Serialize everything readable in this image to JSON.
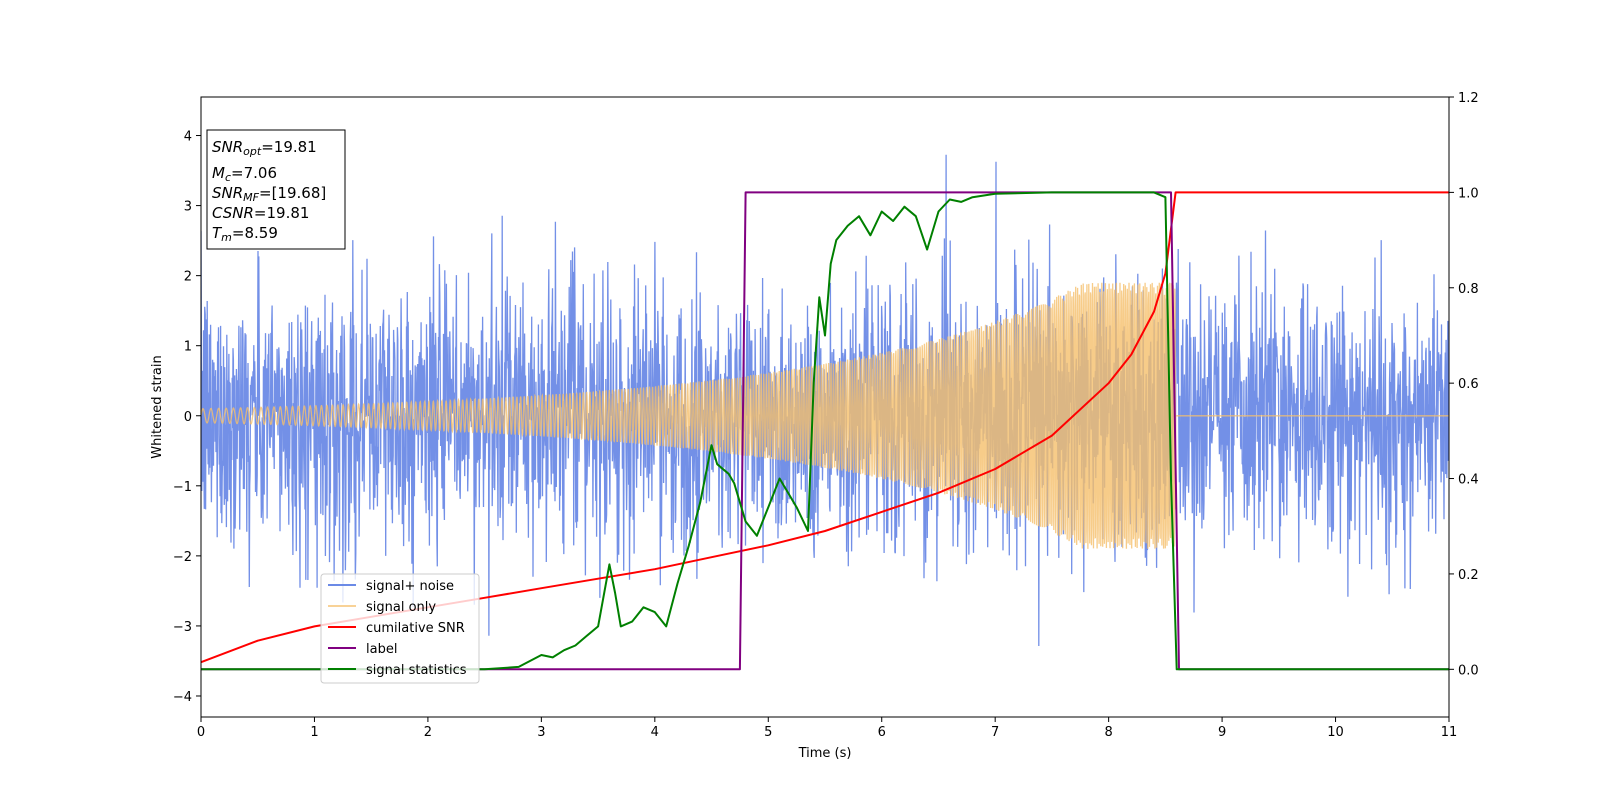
{
  "chart_data": {
    "type": "line",
    "xlabel": "Time (s)",
    "ylabel": "Whitened strain",
    "xlim": [
      0,
      11
    ],
    "ylim": [
      -4.3,
      4.55
    ],
    "y2lim": [
      -0.1,
      1.2
    ],
    "x_ticks": [
      0,
      1,
      2,
      3,
      4,
      5,
      6,
      7,
      8,
      9,
      10,
      11
    ],
    "y_ticks": [
      -4,
      -3,
      -2,
      -1,
      0,
      1,
      2,
      3,
      4
    ],
    "y2_ticks": [
      "0.0",
      "0.2",
      "0.4",
      "0.6",
      "0.8",
      "1.0",
      "1.2"
    ],
    "grid": false,
    "legend_placement": "lower-left",
    "annotation": {
      "lines": [
        {
          "main": "SNR",
          "sub": "opt",
          "rest": "=19.81"
        },
        {
          "main": "M",
          "sub": "c",
          "rest": "=7.06"
        },
        {
          "main": "SNR",
          "sub": "MF",
          "rest": "=[19.68]"
        },
        {
          "main": "CSNR",
          "sub": "",
          "rest": "=19.81"
        },
        {
          "main": "T",
          "sub": "m",
          "rest": "=8.59"
        }
      ]
    },
    "series": [
      {
        "name": "signal+ noise",
        "color": "#6b8ae6",
        "axis": "left",
        "kind": "noise",
        "noise_sigma": 1.0,
        "samples": 3000
      },
      {
        "name": "signal only",
        "color": "#f5bf6b",
        "axis": "left",
        "kind": "chirp",
        "amplitude_at_start": 0.1,
        "amplitude_at_merger": 1.9,
        "merger_time": 8.59
      },
      {
        "name": "cumilative SNR",
        "color": "#ff0000",
        "axis": "right",
        "x": [
          0,
          0.5,
          1,
          1.5,
          2,
          2.5,
          3,
          3.5,
          4,
          4.5,
          5,
          5.5,
          6,
          6.5,
          7,
          7.5,
          8,
          8.2,
          8.4,
          8.5,
          8.59,
          11
        ],
        "y": [
          0.015,
          0.06,
          0.09,
          0.11,
          0.13,
          0.15,
          0.17,
          0.19,
          0.21,
          0.235,
          0.26,
          0.29,
          0.33,
          0.37,
          0.42,
          0.49,
          0.6,
          0.66,
          0.75,
          0.83,
          1.0,
          1.0
        ]
      },
      {
        "name": "label",
        "color": "#800080",
        "axis": "right",
        "x": [
          0,
          4.75,
          4.8,
          8.55,
          8.62,
          11
        ],
        "y": [
          0.0,
          0.0,
          1.0,
          1.0,
          0.0,
          0.0
        ]
      },
      {
        "name": "signal statistics",
        "color": "#008000",
        "axis": "right",
        "x": [
          0,
          2.5,
          2.8,
          3.0,
          3.1,
          3.2,
          3.3,
          3.4,
          3.5,
          3.6,
          3.65,
          3.7,
          3.8,
          3.9,
          4.0,
          4.1,
          4.2,
          4.3,
          4.4,
          4.5,
          4.55,
          4.65,
          4.7,
          4.8,
          4.9,
          5.0,
          5.1,
          5.15,
          5.25,
          5.35,
          5.4,
          5.45,
          5.5,
          5.55,
          5.6,
          5.7,
          5.8,
          5.9,
          6.0,
          6.1,
          6.2,
          6.3,
          6.4,
          6.5,
          6.6,
          6.7,
          6.8,
          7.0,
          7.5,
          8.0,
          8.4,
          8.5,
          8.55,
          8.6,
          11
        ],
        "y": [
          0.0,
          0.0,
          0.005,
          0.03,
          0.025,
          0.04,
          0.05,
          0.07,
          0.09,
          0.22,
          0.16,
          0.09,
          0.1,
          0.13,
          0.12,
          0.09,
          0.18,
          0.26,
          0.35,
          0.47,
          0.43,
          0.41,
          0.39,
          0.31,
          0.28,
          0.34,
          0.4,
          0.38,
          0.34,
          0.29,
          0.6,
          0.78,
          0.7,
          0.85,
          0.9,
          0.93,
          0.95,
          0.91,
          0.96,
          0.94,
          0.97,
          0.95,
          0.88,
          0.96,
          0.985,
          0.98,
          0.99,
          0.997,
          1.0,
          1.0,
          1.0,
          0.99,
          0.4,
          0.0,
          0.0
        ]
      }
    ]
  }
}
